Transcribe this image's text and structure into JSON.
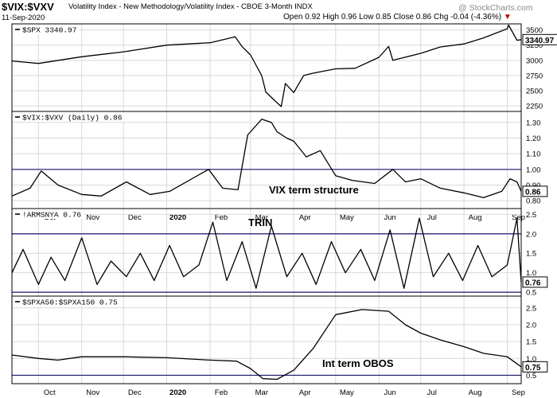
{
  "header": {
    "symbol": "$VIX:$VXV",
    "description": "Volatility Index - New Methodology/Volatility Index - CBOE 3-Month INDX",
    "date": "11-Sep-2020",
    "ohlc": "Open 0.92  High 0.96  Low 0.85  Close 0.86",
    "change": "Chg -0.04 (-4.36%)",
    "change_arrow": "▼",
    "brand": "@ StockCharts.com"
  },
  "colors": {
    "price_line": "#000000",
    "reference_line": "#1a1a6e",
    "grid": "#d9d9d9",
    "negative": "#c00000"
  },
  "x_axis": {
    "labels": [
      "Oct",
      "Nov",
      "Dec",
      "2020",
      "Feb",
      "Mar",
      "Apr",
      "May",
      "Jun",
      "Jul",
      "Aug",
      "Sep"
    ],
    "bold_label": "2020"
  },
  "chart_data": [
    {
      "type": "line",
      "title": "$SPX 3340.97",
      "symbol": "$SPX",
      "last_value": 3340.97,
      "last_label": "3340.97",
      "yticks": [
        2250,
        2500,
        2750,
        3000,
        3250,
        3500
      ],
      "ylim": [
        2160,
        3600
      ],
      "reference_lines": [],
      "annotation": "",
      "x": [
        "2019-09-12",
        "2019-10-01",
        "2019-11-01",
        "2019-12-01",
        "2020-01-01",
        "2020-02-01",
        "2020-02-19",
        "2020-02-24",
        "2020-03-01",
        "2020-03-09",
        "2020-03-12",
        "2020-03-16",
        "2020-03-23",
        "2020-03-26",
        "2020-04-01",
        "2020-04-08",
        "2020-04-15",
        "2020-05-01",
        "2020-05-15",
        "2020-06-01",
        "2020-06-08",
        "2020-06-11",
        "2020-07-01",
        "2020-07-15",
        "2020-08-01",
        "2020-08-15",
        "2020-09-01",
        "2020-09-02",
        "2020-09-08",
        "2020-09-11"
      ],
      "values": [
        2990,
        2950,
        3060,
        3140,
        3250,
        3290,
        3386,
        3225,
        3090,
        2750,
        2480,
        2390,
        2240,
        2620,
        2470,
        2750,
        2790,
        2860,
        2870,
        3050,
        3230,
        3000,
        3115,
        3220,
        3270,
        3370,
        3520,
        3580,
        3330,
        3340.97
      ]
    },
    {
      "type": "line",
      "title": "$VIX:$VXV (Daily) 0.86",
      "symbol": "$VIX:$VXV",
      "last_value": 0.86,
      "last_label": "0.86",
      "yticks": [
        0.8,
        0.9,
        1.0,
        1.1,
        1.2,
        1.3
      ],
      "ylim": [
        0.75,
        1.37
      ],
      "reference_lines": [
        1.0
      ],
      "annotation": "VIX term structure",
      "x": [
        "2019-09-12",
        "2019-09-25",
        "2019-10-03",
        "2019-10-15",
        "2019-11-01",
        "2019-11-15",
        "2019-12-03",
        "2019-12-20",
        "2020-01-03",
        "2020-01-27",
        "2020-01-31",
        "2020-02-10",
        "2020-02-21",
        "2020-02-28",
        "2020-03-09",
        "2020-03-16",
        "2020-03-20",
        "2020-03-27",
        "2020-04-01",
        "2020-04-10",
        "2020-04-20",
        "2020-05-01",
        "2020-05-13",
        "2020-05-29",
        "2020-06-11",
        "2020-06-20",
        "2020-07-01",
        "2020-07-15",
        "2020-08-01",
        "2020-08-15",
        "2020-08-28",
        "2020-09-03",
        "2020-09-08",
        "2020-09-11"
      ],
      "values": [
        0.83,
        0.88,
        0.99,
        0.9,
        0.84,
        0.83,
        0.92,
        0.84,
        0.86,
        0.98,
        1.0,
        0.88,
        0.87,
        1.22,
        1.32,
        1.3,
        1.24,
        1.2,
        1.18,
        1.08,
        1.12,
        0.96,
        0.93,
        0.91,
        1.0,
        0.92,
        0.94,
        0.88,
        0.85,
        0.82,
        0.86,
        0.94,
        0.92,
        0.86
      ]
    },
    {
      "type": "line",
      "title": "!ARMSNYA 0.76",
      "symbol": "!ARMSNYA",
      "last_value": 0.76,
      "last_label": "0.76",
      "yticks": [
        0.5,
        1.0,
        1.5,
        2.0,
        2.5
      ],
      "ylim": [
        0.4,
        2.65
      ],
      "reference_lines": [
        2.0,
        0.5
      ],
      "annotation": "TRIN",
      "x": [
        "2019-09-12",
        "2019-09-20",
        "2019-10-01",
        "2019-10-10",
        "2019-10-20",
        "2019-11-01",
        "2019-11-12",
        "2019-11-22",
        "2019-12-03",
        "2019-12-13",
        "2019-12-23",
        "2020-01-03",
        "2020-01-13",
        "2020-01-24",
        "2020-02-03",
        "2020-02-13",
        "2020-02-24",
        "2020-03-05",
        "2020-03-16",
        "2020-03-27",
        "2020-04-07",
        "2020-04-17",
        "2020-04-28",
        "2020-05-08",
        "2020-05-19",
        "2020-05-29",
        "2020-06-09",
        "2020-06-19",
        "2020-06-30",
        "2020-07-10",
        "2020-07-21",
        "2020-07-31",
        "2020-08-11",
        "2020-08-21",
        "2020-09-01",
        "2020-09-08",
        "2020-09-11"
      ],
      "values": [
        1.0,
        1.6,
        0.7,
        1.4,
        0.8,
        1.9,
        0.7,
        1.3,
        0.9,
        1.5,
        0.8,
        1.7,
        0.9,
        1.2,
        2.3,
        0.8,
        1.8,
        0.6,
        2.2,
        0.9,
        1.5,
        0.7,
        1.8,
        1.0,
        1.6,
        0.8,
        2.1,
        0.6,
        2.4,
        0.9,
        1.5,
        0.8,
        1.7,
        0.9,
        1.2,
        2.4,
        0.76
      ]
    },
    {
      "type": "line",
      "title": "$SPXA50:$SPXA150 0.75",
      "symbol": "$SPXA50:$SPXA150",
      "last_value": 0.75,
      "last_label": "0.75",
      "yticks": [
        0.5,
        1.0,
        1.5,
        2.0,
        2.5
      ],
      "ylim": [
        0.25,
        2.85
      ],
      "reference_lines": [
        0.5
      ],
      "annotation": "Int term OBOS",
      "x": [
        "2019-09-12",
        "2019-10-01",
        "2019-10-15",
        "2019-11-01",
        "2019-12-01",
        "2020-01-01",
        "2020-02-01",
        "2020-02-20",
        "2020-03-01",
        "2020-03-10",
        "2020-03-20",
        "2020-04-01",
        "2020-04-15",
        "2020-05-01",
        "2020-05-20",
        "2020-06-08",
        "2020-06-20",
        "2020-07-01",
        "2020-07-15",
        "2020-08-01",
        "2020-08-15",
        "2020-09-01",
        "2020-09-11"
      ],
      "values": [
        1.1,
        1.0,
        0.95,
        1.05,
        1.05,
        1.02,
        0.95,
        0.92,
        0.7,
        0.4,
        0.38,
        0.65,
        1.3,
        2.3,
        2.45,
        2.4,
        2.0,
        1.75,
        1.55,
        1.35,
        1.15,
        1.05,
        0.75
      ]
    }
  ]
}
